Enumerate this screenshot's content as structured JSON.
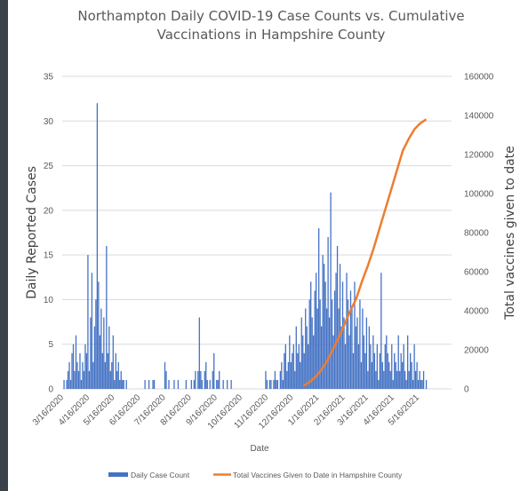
{
  "chart_data": {
    "type": "bar+line",
    "title_line1": "Northampton Daily COVID-19 Case Counts vs. Cumulative",
    "title_line2": "Vaccinations in Hampshire County",
    "xlabel": "Date",
    "ylabel_left": "Daily Reported Cases",
    "ylabel_right": "Total vaccines given to date",
    "ylim_left": [
      0,
      35
    ],
    "ylim_right": [
      0,
      160000
    ],
    "yticks_left": [
      "0",
      "5",
      "10",
      "15",
      "20",
      "25",
      "30",
      "35"
    ],
    "yticks_right": [
      "0",
      "20000",
      "40000",
      "60000",
      "80000",
      "100000",
      "120000",
      "140000",
      "160000"
    ],
    "xtick_labels": [
      "3/16/2020",
      "4/16/2020",
      "5/16/2020",
      "6/16/2020",
      "7/16/2020",
      "8/16/2020",
      "9/16/2020",
      "10/16/2020",
      "11/16/2020",
      "12/16/2020",
      "1/16/2021",
      "2/16/2021",
      "3/16/2021",
      "4/16/2021",
      "5/16/2021"
    ],
    "grid": true,
    "legend_position": "bottom",
    "colors": {
      "bars": "#4472c4",
      "line": "#ed7d31",
      "grid": "#d9d9d9"
    },
    "series": [
      {
        "name": "Daily Case Count",
        "kind": "bar",
        "axis": "left",
        "values": [
          1,
          0,
          1,
          2,
          3,
          1,
          4,
          5,
          2,
          6,
          3,
          2,
          4,
          1,
          3,
          2,
          5,
          4,
          15,
          2,
          8,
          13,
          3,
          7,
          10,
          32,
          12,
          6,
          9,
          4,
          8,
          3,
          16,
          4,
          7,
          2,
          3,
          6,
          1,
          4,
          2,
          3,
          1,
          2,
          1,
          1,
          0,
          1,
          0,
          0,
          0,
          0,
          0,
          0,
          0,
          0,
          0,
          0,
          0,
          0,
          0,
          1,
          0,
          0,
          1,
          0,
          0,
          1,
          1,
          0,
          0,
          0,
          0,
          0,
          0,
          0,
          3,
          2,
          0,
          1,
          0,
          0,
          0,
          1,
          0,
          0,
          1,
          0,
          0,
          0,
          0,
          0,
          1,
          0,
          0,
          0,
          1,
          0,
          1,
          2,
          0,
          2,
          8,
          2,
          1,
          0,
          2,
          3,
          1,
          0,
          1,
          0,
          2,
          4,
          0,
          1,
          1,
          2,
          0,
          0,
          1,
          0,
          0,
          1,
          0,
          0,
          1,
          0,
          0,
          0,
          0,
          0,
          0,
          0,
          0,
          0,
          0,
          0,
          0,
          0,
          0,
          0,
          0,
          0,
          0,
          0,
          0,
          0,
          0,
          0,
          0,
          0,
          2,
          1,
          0,
          1,
          1,
          0,
          1,
          2,
          1,
          1,
          0,
          2,
          3,
          1,
          4,
          5,
          2,
          3,
          6,
          3,
          4,
          5,
          2,
          7,
          4,
          5,
          3,
          8,
          6,
          4,
          9,
          7,
          5,
          10,
          12,
          8,
          6,
          11,
          13,
          9,
          18,
          10,
          7,
          15,
          14,
          12,
          9,
          17,
          8,
          22,
          10,
          6,
          11,
          13,
          16,
          9,
          14,
          7,
          12,
          8,
          5,
          13,
          10,
          6,
          11,
          9,
          4,
          12,
          7,
          8,
          5,
          10,
          3,
          9,
          6,
          4,
          8,
          2,
          7,
          5,
          3,
          6,
          4,
          2,
          5,
          1,
          4,
          13,
          3,
          2,
          5,
          6,
          4,
          3,
          2,
          5,
          1,
          4,
          3,
          2,
          6,
          2,
          4,
          3,
          5,
          2,
          1,
          6,
          2,
          4,
          3,
          1,
          5,
          2,
          3,
          1,
          2,
          1,
          1,
          2,
          0,
          1
        ]
      },
      {
        "name": "Total Vaccines Given to Date in Hampshire County",
        "kind": "line",
        "axis": "right",
        "x": [
          "12/28/2020",
          "1/4/2021",
          "1/11/2021",
          "1/18/2021",
          "1/25/2021",
          "2/1/2021",
          "2/8/2021",
          "2/15/2021",
          "2/22/2021",
          "3/1/2021",
          "3/8/2021",
          "3/15/2021",
          "3/22/2021",
          "3/29/2021",
          "4/5/2021",
          "4/12/2021",
          "4/19/2021",
          "4/26/2021",
          "5/3/2021",
          "5/10/2021",
          "5/17/2021",
          "5/24/2021"
        ],
        "values": [
          1500,
          3500,
          6000,
          9500,
          14000,
          20000,
          26000,
          33000,
          40000,
          46000,
          55000,
          63000,
          72000,
          82000,
          92000,
          102000,
          112000,
          122000,
          128000,
          133000,
          136000,
          138000
        ]
      }
    ]
  }
}
